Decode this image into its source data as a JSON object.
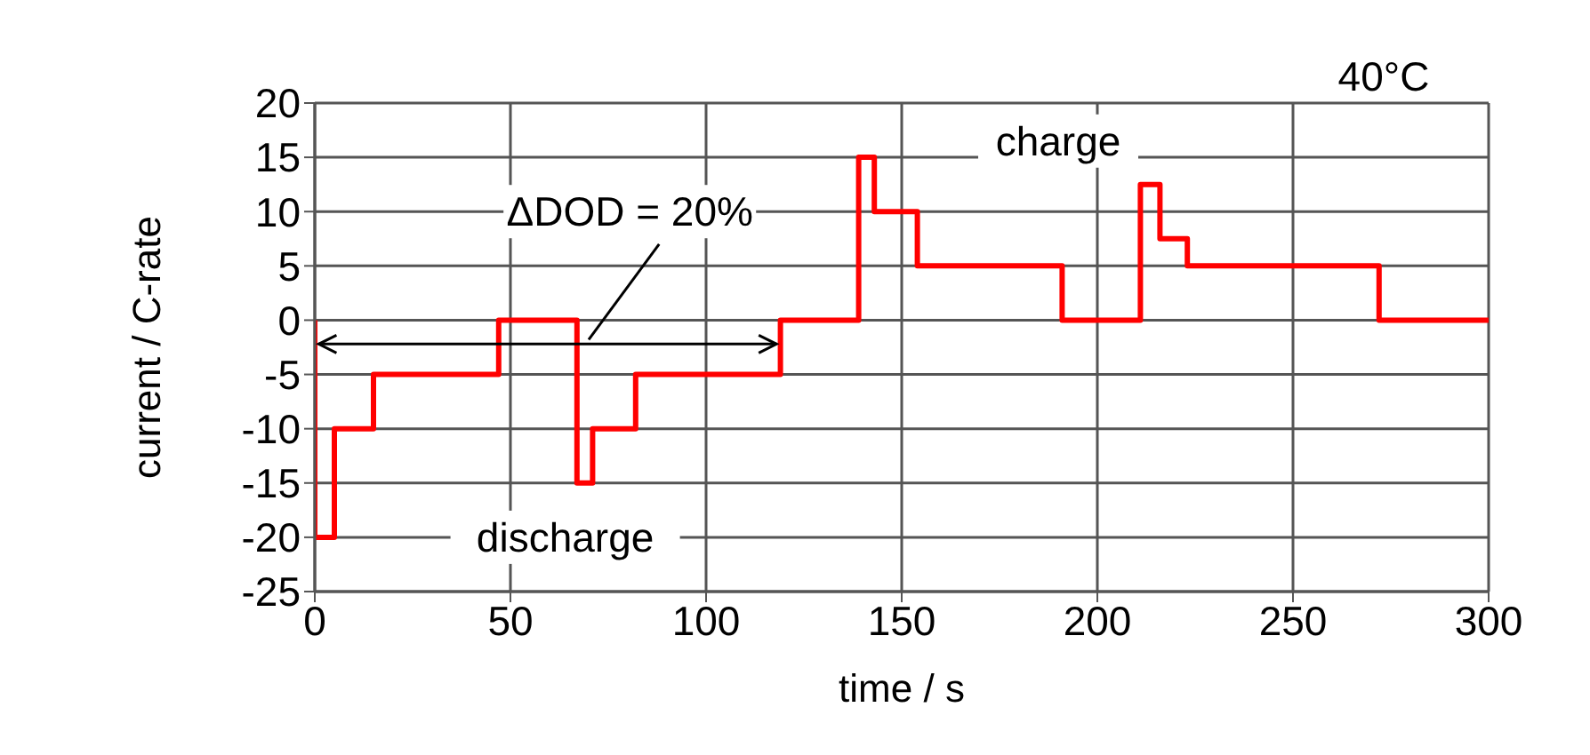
{
  "chart_data": {
    "type": "step",
    "xlabel": "time / s",
    "ylabel": "current / C-rate",
    "annotations": [
      "40°C",
      "charge",
      "discharge",
      "ΔDOD = 20%"
    ],
    "x": [
      0,
      0,
      5,
      15,
      47,
      67,
      71,
      82,
      119,
      139,
      143,
      154,
      191,
      211,
      216,
      223,
      272,
      300
    ],
    "series": [
      {
        "color": "#ff0000",
        "values": [
          0,
          -20,
          -10,
          -5,
          0,
          -15,
          -10,
          -5,
          0,
          15,
          10,
          5,
          0,
          12.5,
          7.5,
          5,
          0,
          0
        ]
      }
    ],
    "xlim": [
      0,
      300
    ],
    "xticks": [
      0,
      50,
      100,
      150,
      200,
      250,
      300
    ],
    "ylim": [
      -25,
      20
    ],
    "yticks": [
      -25,
      -20,
      -15,
      -10,
      -5,
      0,
      5,
      10,
      15,
      20
    ],
    "grid": true,
    "legend": false,
    "marker": "none",
    "line_style": "solid"
  }
}
